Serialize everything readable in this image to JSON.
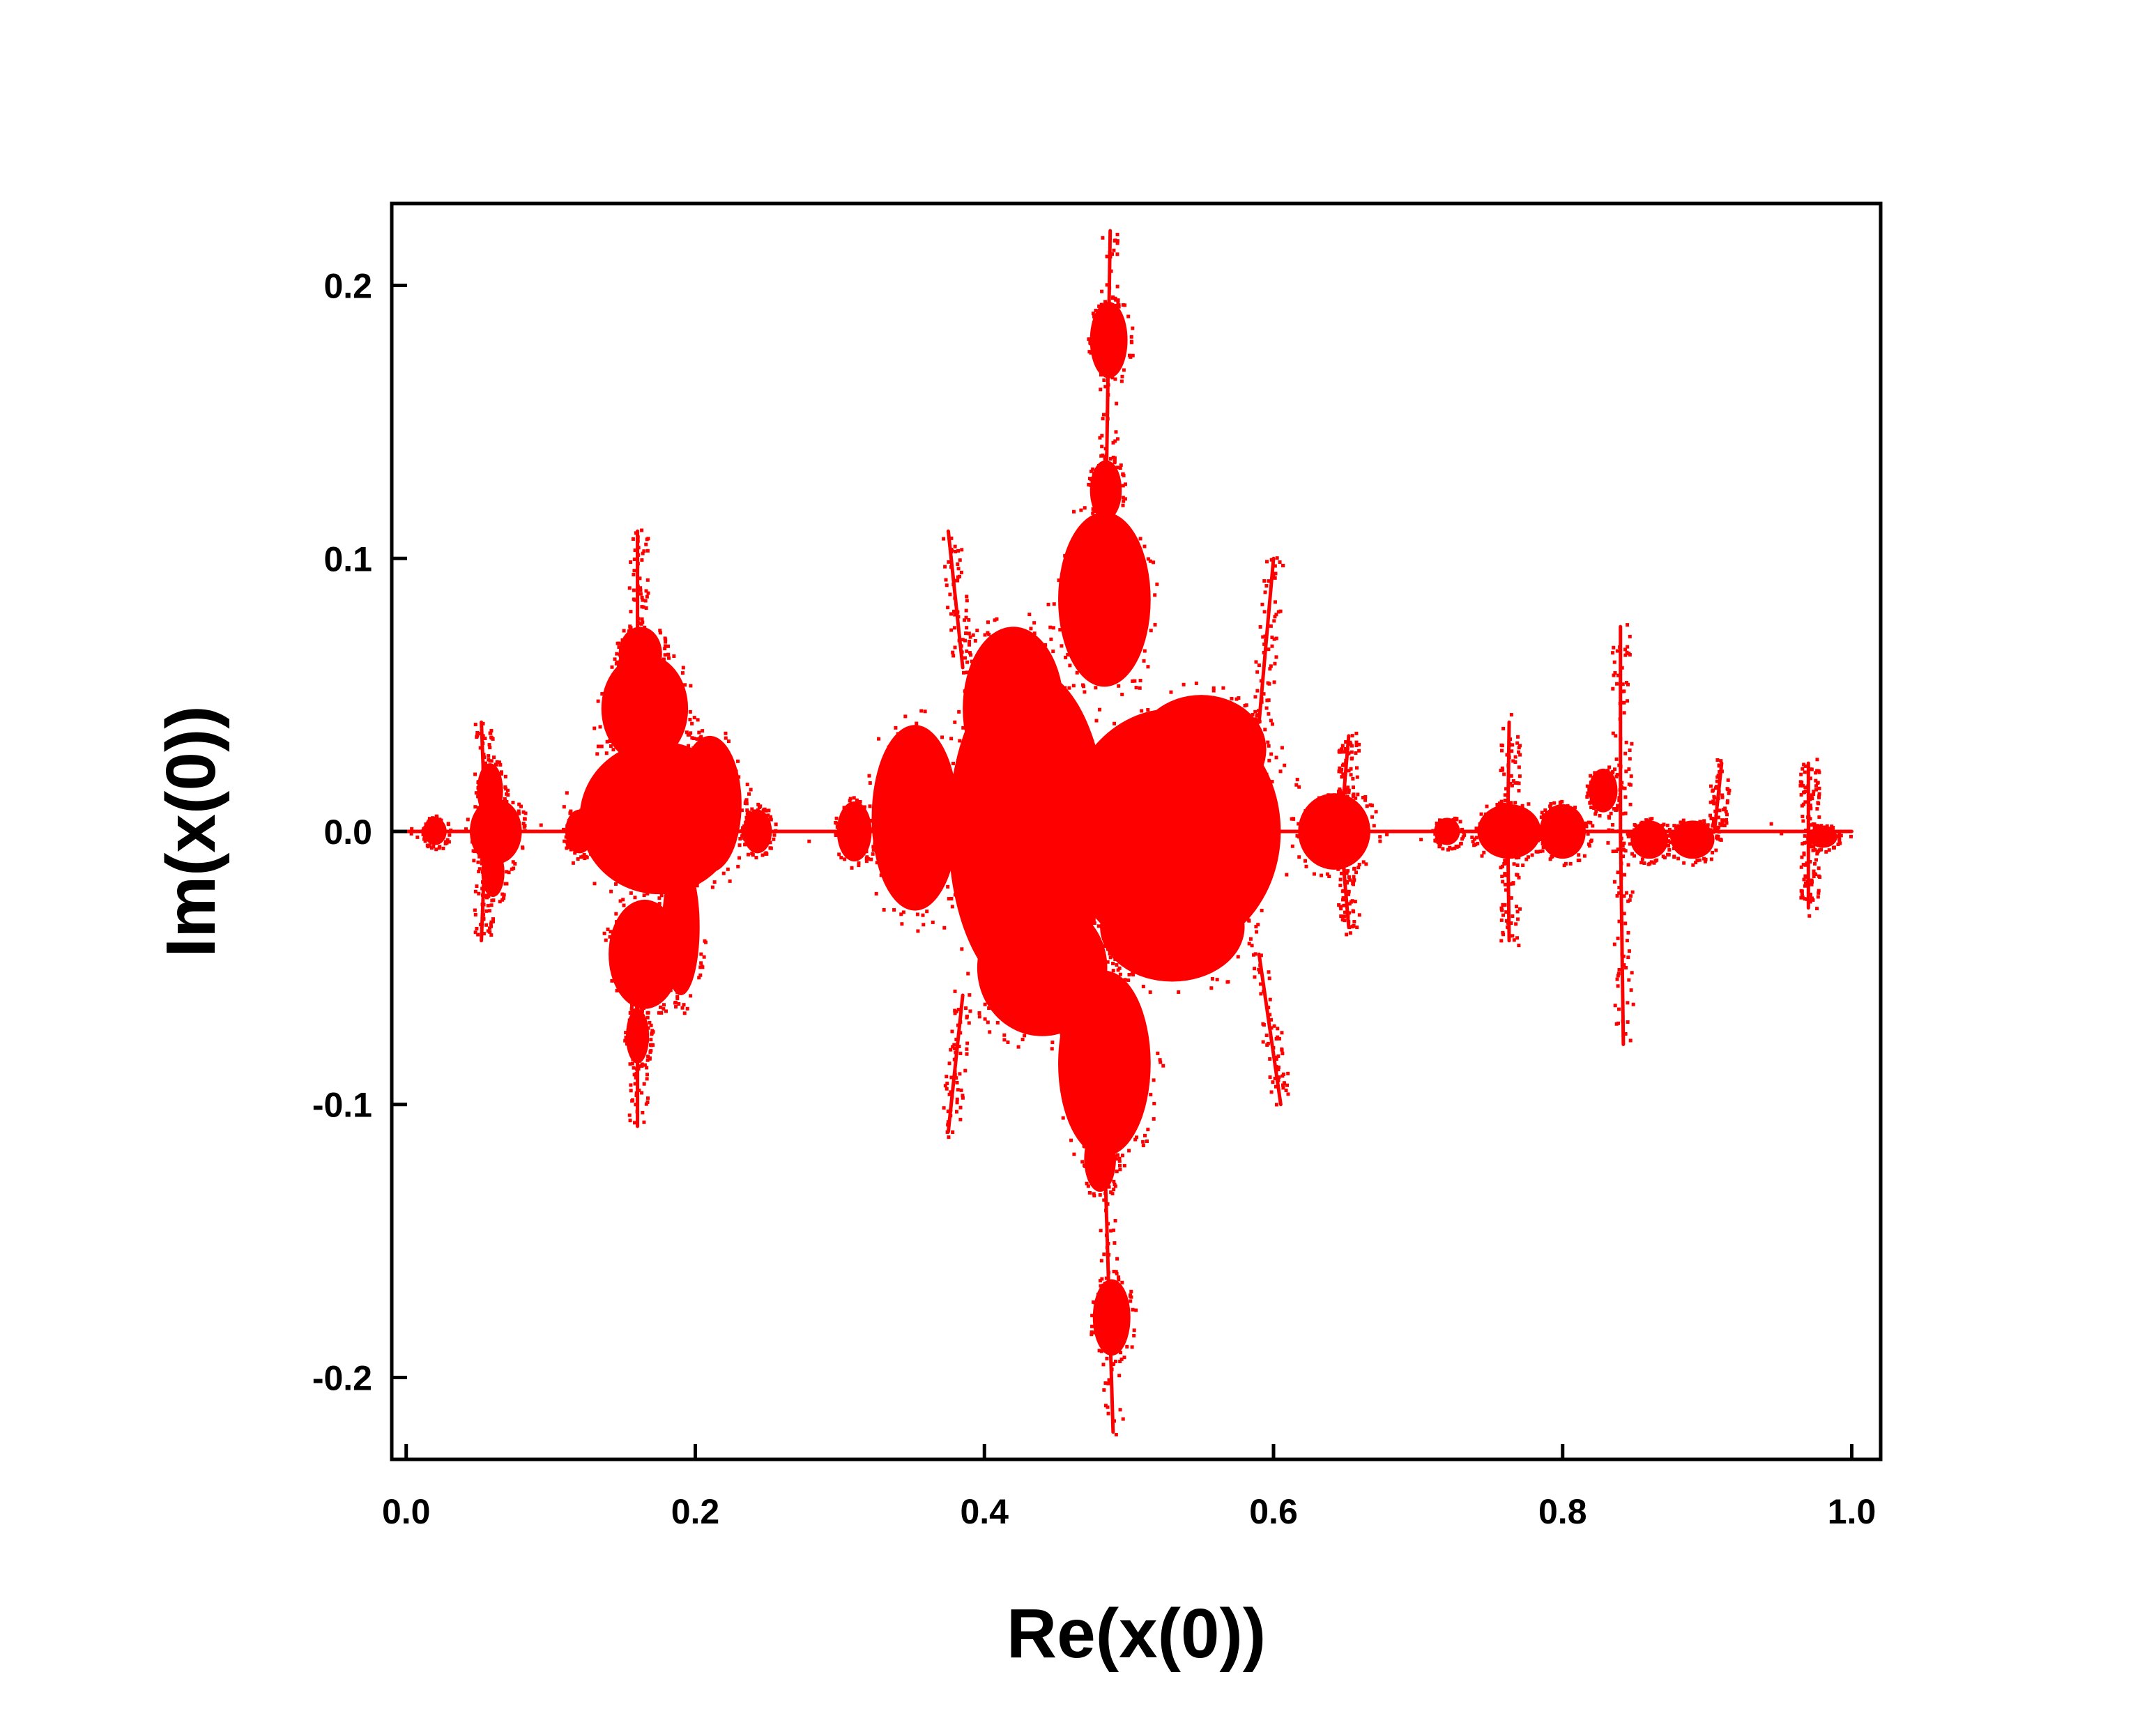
{
  "chart_data": {
    "type": "scatter",
    "title": "",
    "xlabel": "Re(x(0))",
    "ylabel": "Im(x(0))",
    "xlim": [
      -0.01,
      1.02
    ],
    "ylim": [
      -0.23,
      0.23
    ],
    "grid": false,
    "legend": "none",
    "color": "#ff0000",
    "x_ticks": [
      {
        "value": 0.0,
        "label": "0.0"
      },
      {
        "value": 0.2,
        "label": "0.2"
      },
      {
        "value": 0.4,
        "label": "0.4"
      },
      {
        "value": 0.6,
        "label": "0.6"
      },
      {
        "value": 0.8,
        "label": "0.8"
      },
      {
        "value": 1.0,
        "label": "1.0"
      }
    ],
    "y_ticks": [
      {
        "value": -0.2,
        "label": "-0.2"
      },
      {
        "value": -0.1,
        "label": "-0.1"
      },
      {
        "value": 0.0,
        "label": "0.0"
      },
      {
        "value": 0.1,
        "label": "0.1"
      },
      {
        "value": 0.2,
        "label": "0.2"
      }
    ],
    "regions": [
      {
        "name": "main-body-left",
        "cx": 0.43,
        "cy": 0.0,
        "rx": 0.055,
        "ry": 0.06
      },
      {
        "name": "main-body-upper-left",
        "cx": 0.42,
        "cy": 0.045,
        "rx": 0.035,
        "ry": 0.03
      },
      {
        "name": "main-body-right",
        "cx": 0.53,
        "cy": 0.0,
        "rx": 0.075,
        "ry": 0.045
      },
      {
        "name": "main-body-upper-right",
        "cx": 0.55,
        "cy": 0.03,
        "rx": 0.045,
        "ry": 0.02
      },
      {
        "name": "main-body-lower",
        "cx": 0.44,
        "cy": -0.05,
        "rx": 0.045,
        "ry": 0.025
      },
      {
        "name": "main-body-lower-right",
        "cx": 0.53,
        "cy": -0.035,
        "rx": 0.05,
        "ry": 0.02
      },
      {
        "name": "upper-lobe",
        "cx": 0.483,
        "cy": 0.085,
        "rx": 0.032,
        "ry": 0.032
      },
      {
        "name": "lower-lobe",
        "cx": 0.483,
        "cy": -0.085,
        "rx": 0.032,
        "ry": 0.034
      },
      {
        "name": "top-cluster",
        "cx": 0.486,
        "cy": 0.18,
        "rx": 0.013,
        "ry": 0.014
      },
      {
        "name": "top-bud",
        "cx": 0.484,
        "cy": 0.125,
        "rx": 0.011,
        "ry": 0.011
      },
      {
        "name": "bottom-cluster",
        "cx": 0.488,
        "cy": -0.178,
        "rx": 0.013,
        "ry": 0.014
      },
      {
        "name": "bottom-bud",
        "cx": 0.48,
        "cy": -0.12,
        "rx": 0.011,
        "ry": 0.012
      },
      {
        "name": "left-of-main",
        "cx": 0.352,
        "cy": 0.005,
        "rx": 0.03,
        "ry": 0.034
      },
      {
        "name": "bud-0.31",
        "cx": 0.31,
        "cy": 0.0,
        "rx": 0.012,
        "ry": 0.011
      },
      {
        "name": "bud-0.64",
        "cx": 0.642,
        "cy": 0.0,
        "rx": 0.025,
        "ry": 0.014
      },
      {
        "name": "bud-0.76",
        "cx": 0.763,
        "cy": 0.0,
        "rx": 0.022,
        "ry": 0.01
      },
      {
        "name": "bud-0.80",
        "cx": 0.8,
        "cy": 0.0,
        "rx": 0.016,
        "ry": 0.01
      },
      {
        "name": "bud-0.83",
        "cx": 0.828,
        "cy": 0.015,
        "rx": 0.01,
        "ry": 0.008
      },
      {
        "name": "bud-0.86",
        "cx": 0.86,
        "cy": -0.003,
        "rx": 0.013,
        "ry": 0.007
      },
      {
        "name": "bud-0.89",
        "cx": 0.89,
        "cy": -0.003,
        "rx": 0.015,
        "ry": 0.007
      },
      {
        "name": "bud-0.72",
        "cx": 0.72,
        "cy": 0.0,
        "rx": 0.009,
        "ry": 0.005
      },
      {
        "name": "bud-0.98",
        "cx": 0.98,
        "cy": -0.002,
        "rx": 0.01,
        "ry": 0.004
      },
      {
        "name": "left-cluster-upper",
        "cx": 0.165,
        "cy": 0.045,
        "rx": 0.03,
        "ry": 0.02
      },
      {
        "name": "left-cluster-upper-top",
        "cx": 0.162,
        "cy": 0.065,
        "rx": 0.015,
        "ry": 0.01
      },
      {
        "name": "left-cluster-body",
        "cx": 0.175,
        "cy": 0.005,
        "rx": 0.055,
        "ry": 0.028
      },
      {
        "name": "left-cluster-right",
        "cx": 0.21,
        "cy": 0.01,
        "rx": 0.022,
        "ry": 0.025
      },
      {
        "name": "left-cluster-lower",
        "cx": 0.165,
        "cy": -0.045,
        "rx": 0.025,
        "ry": 0.02
      },
      {
        "name": "left-cluster-lower-right",
        "cx": 0.19,
        "cy": -0.035,
        "rx": 0.013,
        "ry": 0.025
      },
      {
        "name": "left-cluster-bottom",
        "cx": 0.16,
        "cy": -0.075,
        "rx": 0.008,
        "ry": 0.01
      },
      {
        "name": "far-left-cluster",
        "cx": 0.062,
        "cy": 0.0,
        "rx": 0.018,
        "ry": 0.012
      },
      {
        "name": "far-left-upper",
        "cx": 0.058,
        "cy": 0.015,
        "rx": 0.009,
        "ry": 0.01
      },
      {
        "name": "far-left-lower",
        "cx": 0.06,
        "cy": -0.015,
        "rx": 0.008,
        "ry": 0.009
      },
      {
        "name": "bud-0.12",
        "cx": 0.12,
        "cy": 0.0,
        "rx": 0.01,
        "ry": 0.008
      },
      {
        "name": "bud-0.24",
        "cx": 0.243,
        "cy": 0.0,
        "rx": 0.01,
        "ry": 0.008
      },
      {
        "name": "bud-0.02",
        "cx": 0.02,
        "cy": 0.0,
        "rx": 0.008,
        "ry": 0.005
      }
    ],
    "filaments": [
      {
        "name": "axis-filament",
        "x1": 0.0,
        "y1": 0.0,
        "x2": 1.0,
        "y2": 0.0
      },
      {
        "name": "top-spine",
        "x1": 0.484,
        "y1": 0.115,
        "x2": 0.487,
        "y2": 0.22
      },
      {
        "name": "bottom-spine",
        "x1": 0.483,
        "y1": -0.115,
        "x2": 0.489,
        "y2": -0.22
      },
      {
        "name": "spine-0.84-up",
        "x1": 0.84,
        "y1": 0.0,
        "x2": 0.84,
        "y2": 0.075
      },
      {
        "name": "spine-0.84-down",
        "x1": 0.84,
        "y1": 0.0,
        "x2": 0.842,
        "y2": -0.078
      },
      {
        "name": "left-cluster-up",
        "x1": 0.16,
        "y1": 0.06,
        "x2": 0.16,
        "y2": 0.11
      },
      {
        "name": "left-cluster-down",
        "x1": 0.16,
        "y1": -0.06,
        "x2": 0.16,
        "y2": -0.108
      },
      {
        "name": "spur-0.37-up",
        "x1": 0.385,
        "y1": 0.06,
        "x2": 0.375,
        "y2": 0.11
      },
      {
        "name": "spur-0.37-down",
        "x1": 0.385,
        "y1": -0.06,
        "x2": 0.375,
        "y2": -0.11
      },
      {
        "name": "spur-0.60-up",
        "x1": 0.59,
        "y1": 0.04,
        "x2": 0.6,
        "y2": 0.1
      },
      {
        "name": "spur-0.60-down",
        "x1": 0.59,
        "y1": -0.045,
        "x2": 0.605,
        "y2": -0.1
      },
      {
        "name": "spur-0.76-up",
        "x1": 0.762,
        "y1": 0.0,
        "x2": 0.763,
        "y2": 0.04
      },
      {
        "name": "spur-0.76-down",
        "x1": 0.762,
        "y1": 0.0,
        "x2": 0.763,
        "y2": -0.04
      },
      {
        "name": "spur-0.05-up",
        "x1": 0.055,
        "y1": 0.0,
        "x2": 0.052,
        "y2": 0.04
      },
      {
        "name": "spur-0.05-down",
        "x1": 0.055,
        "y1": 0.0,
        "x2": 0.052,
        "y2": -0.04
      },
      {
        "name": "spur-0.97-up",
        "x1": 0.97,
        "y1": 0.0,
        "x2": 0.97,
        "y2": 0.025
      },
      {
        "name": "spur-0.97-down",
        "x1": 0.97,
        "y1": 0.0,
        "x2": 0.97,
        "y2": -0.028
      },
      {
        "name": "spur-0.91",
        "x1": 0.905,
        "y1": 0.0,
        "x2": 0.91,
        "y2": 0.025
      },
      {
        "name": "spur-0.65-down",
        "x1": 0.648,
        "y1": -0.01,
        "x2": 0.652,
        "y2": -0.035
      },
      {
        "name": "spur-0.65-up",
        "x1": 0.648,
        "y1": 0.01,
        "x2": 0.652,
        "y2": 0.035
      }
    ]
  }
}
